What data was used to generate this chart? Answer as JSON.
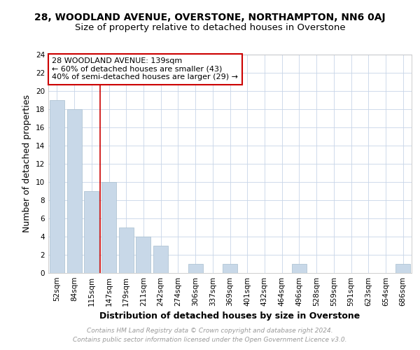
{
  "title_line1": "28, WOODLAND AVENUE, OVERSTONE, NORTHAMPTON, NN6 0AJ",
  "title_line2": "Size of property relative to detached houses in Overstone",
  "xlabel": "Distribution of detached houses by size in Overstone",
  "ylabel": "Number of detached properties",
  "bar_labels": [
    "52sqm",
    "84sqm",
    "115sqm",
    "147sqm",
    "179sqm",
    "211sqm",
    "242sqm",
    "274sqm",
    "306sqm",
    "337sqm",
    "369sqm",
    "401sqm",
    "432sqm",
    "464sqm",
    "496sqm",
    "528sqm",
    "559sqm",
    "591sqm",
    "623sqm",
    "654sqm",
    "686sqm"
  ],
  "bar_values": [
    19,
    18,
    9,
    10,
    5,
    4,
    3,
    0,
    1,
    0,
    1,
    0,
    0,
    0,
    1,
    0,
    0,
    0,
    0,
    0,
    1
  ],
  "bar_color": "#c8d8e8",
  "bar_edge_color": "#a8bece",
  "annotation_box_text": "28 WOODLAND AVENUE: 139sqm\n← 60% of detached houses are smaller (43)\n40% of semi-detached houses are larger (29) →",
  "red_line_color": "#cc0000",
  "box_edge_color": "#cc0000",
  "ylim": [
    0,
    24
  ],
  "yticks": [
    0,
    2,
    4,
    6,
    8,
    10,
    12,
    14,
    16,
    18,
    20,
    22,
    24
  ],
  "footer_line1": "Contains HM Land Registry data © Crown copyright and database right 2024.",
  "footer_line2": "Contains public sector information licensed under the Open Government Licence v3.0.",
  "grid_color": "#c8d4e8",
  "title_fontsize": 10,
  "subtitle_fontsize": 9.5,
  "axis_label_fontsize": 9,
  "tick_fontsize": 7.5,
  "annotation_fontsize": 8,
  "footer_fontsize": 6.5
}
